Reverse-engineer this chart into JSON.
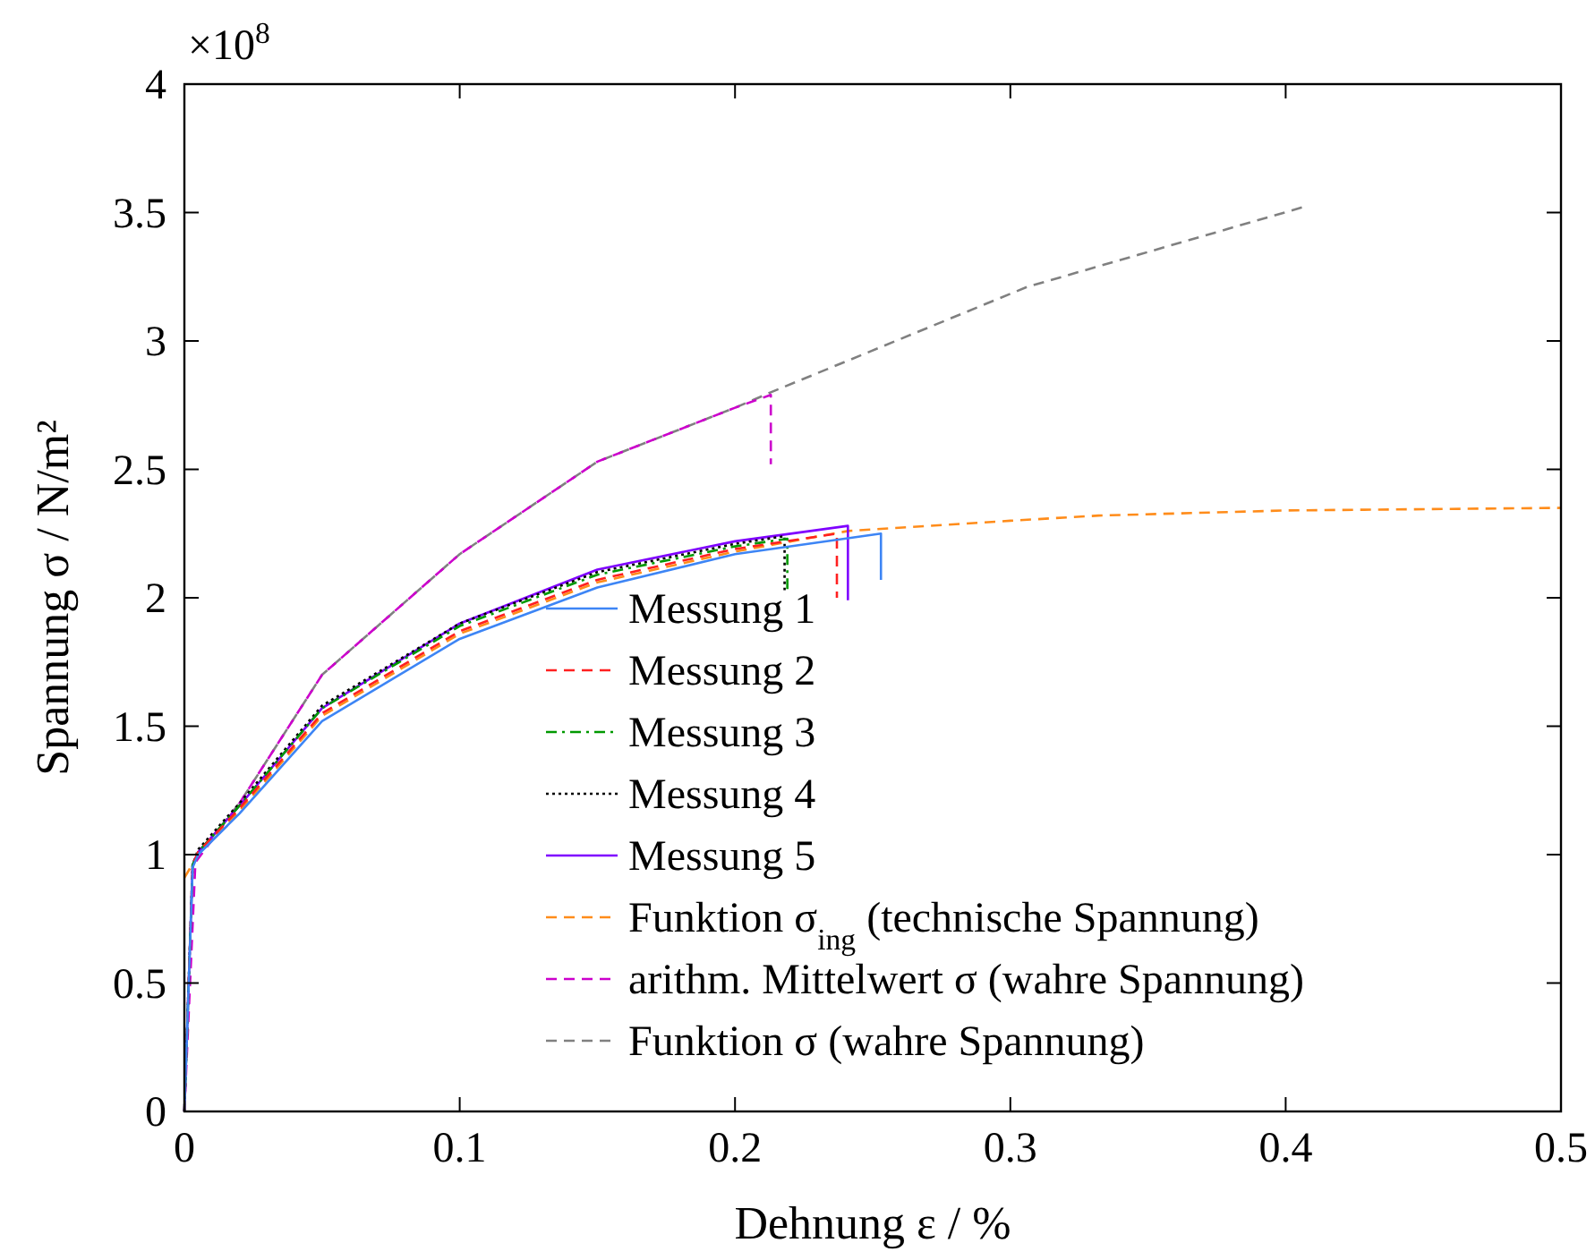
{
  "chart_data": {
    "type": "line",
    "xlabel": "Dehnung ε / %",
    "ylabel": "Spannung σ / N/m²",
    "annotations": [
      "×10$^{8}$"
    ],
    "xlim": [
      0,
      0.5
    ],
    "ylim": [
      0,
      4
    ],
    "xticks": [
      0,
      0.1,
      0.2,
      0.3,
      0.4,
      0.5
    ],
    "yticks": [
      0,
      0.5,
      1,
      1.5,
      2,
      2.5,
      3,
      3.5,
      4
    ],
    "grid": false,
    "legend": "bottom right",
    "marker": "none",
    "series": [
      {
        "name": "Messung 1",
        "color": "#3d85f5",
        "line_style": "solid",
        "x": [
          0,
          0.003,
          0.005,
          0.02,
          0.05,
          0.1,
          0.15,
          0.2,
          0.253,
          0.253
        ],
        "values": [
          0,
          0.95,
          1.0,
          1.16,
          1.52,
          1.84,
          2.04,
          2.17,
          2.25,
          2.07
        ]
      },
      {
        "name": "Messung 2",
        "color": "#ff2020",
        "line_style": "dashed",
        "x": [
          0,
          0.003,
          0.005,
          0.02,
          0.05,
          0.1,
          0.15,
          0.2,
          0.237,
          0.237
        ],
        "values": [
          0,
          0.96,
          1.01,
          1.18,
          1.55,
          1.87,
          2.07,
          2.19,
          2.25,
          2.0
        ]
      },
      {
        "name": "Messung 3",
        "color": "#009900",
        "line_style": "dashdot",
        "x": [
          0,
          0.003,
          0.005,
          0.02,
          0.05,
          0.1,
          0.15,
          0.2,
          0.219,
          0.219
        ],
        "values": [
          0,
          0.96,
          1.01,
          1.19,
          1.57,
          1.89,
          2.09,
          2.2,
          2.23,
          2.03
        ]
      },
      {
        "name": "Messung 4",
        "color": "#000000",
        "line_style": "dotted",
        "x": [
          0,
          0.003,
          0.005,
          0.02,
          0.05,
          0.1,
          0.15,
          0.2,
          0.218,
          0.218
        ],
        "values": [
          0,
          0.96,
          1.02,
          1.2,
          1.58,
          1.9,
          2.1,
          2.21,
          2.24,
          2.03
        ]
      },
      {
        "name": "Messung 5",
        "color": "#7f00ff",
        "line_style": "solid",
        "x": [
          0,
          0.003,
          0.005,
          0.02,
          0.05,
          0.1,
          0.15,
          0.2,
          0.241,
          0.241
        ],
        "values": [
          0,
          0.96,
          1.01,
          1.19,
          1.57,
          1.9,
          2.11,
          2.22,
          2.28,
          1.99
        ]
      },
      {
        "name": "Funktion σ$_{ing}$ (technische Spannung)",
        "color": "#ff8c1a",
        "line_style": "dashed",
        "x": [
          0,
          0.005,
          0.02,
          0.05,
          0.1,
          0.15,
          0.2,
          0.241,
          0.3,
          0.332,
          0.4,
          0.5
        ],
        "values": [
          0.91,
          1.0,
          1.17,
          1.54,
          1.86,
          2.06,
          2.18,
          2.26,
          2.3,
          2.32,
          2.34,
          2.35
        ]
      },
      {
        "name": "arithm. Mittelwert σ (wahre Spannung)",
        "color": "#cc00cc",
        "line_style": "dashed",
        "x": [
          0,
          0.004,
          0.02,
          0.05,
          0.1,
          0.15,
          0.2,
          0.213,
          0.213
        ],
        "values": [
          0,
          0.97,
          1.2,
          1.7,
          2.17,
          2.53,
          2.74,
          2.79,
          2.52
        ]
      },
      {
        "name": "Funktion σ (wahre Spannung)",
        "color": "#808080",
        "line_style": "dashed",
        "x": [
          0.005,
          0.02,
          0.05,
          0.1,
          0.15,
          0.2,
          0.213,
          0.306,
          0.406
        ],
        "values": [
          1.0,
          1.2,
          1.7,
          2.17,
          2.53,
          2.74,
          2.8,
          3.21,
          3.52
        ]
      }
    ]
  }
}
